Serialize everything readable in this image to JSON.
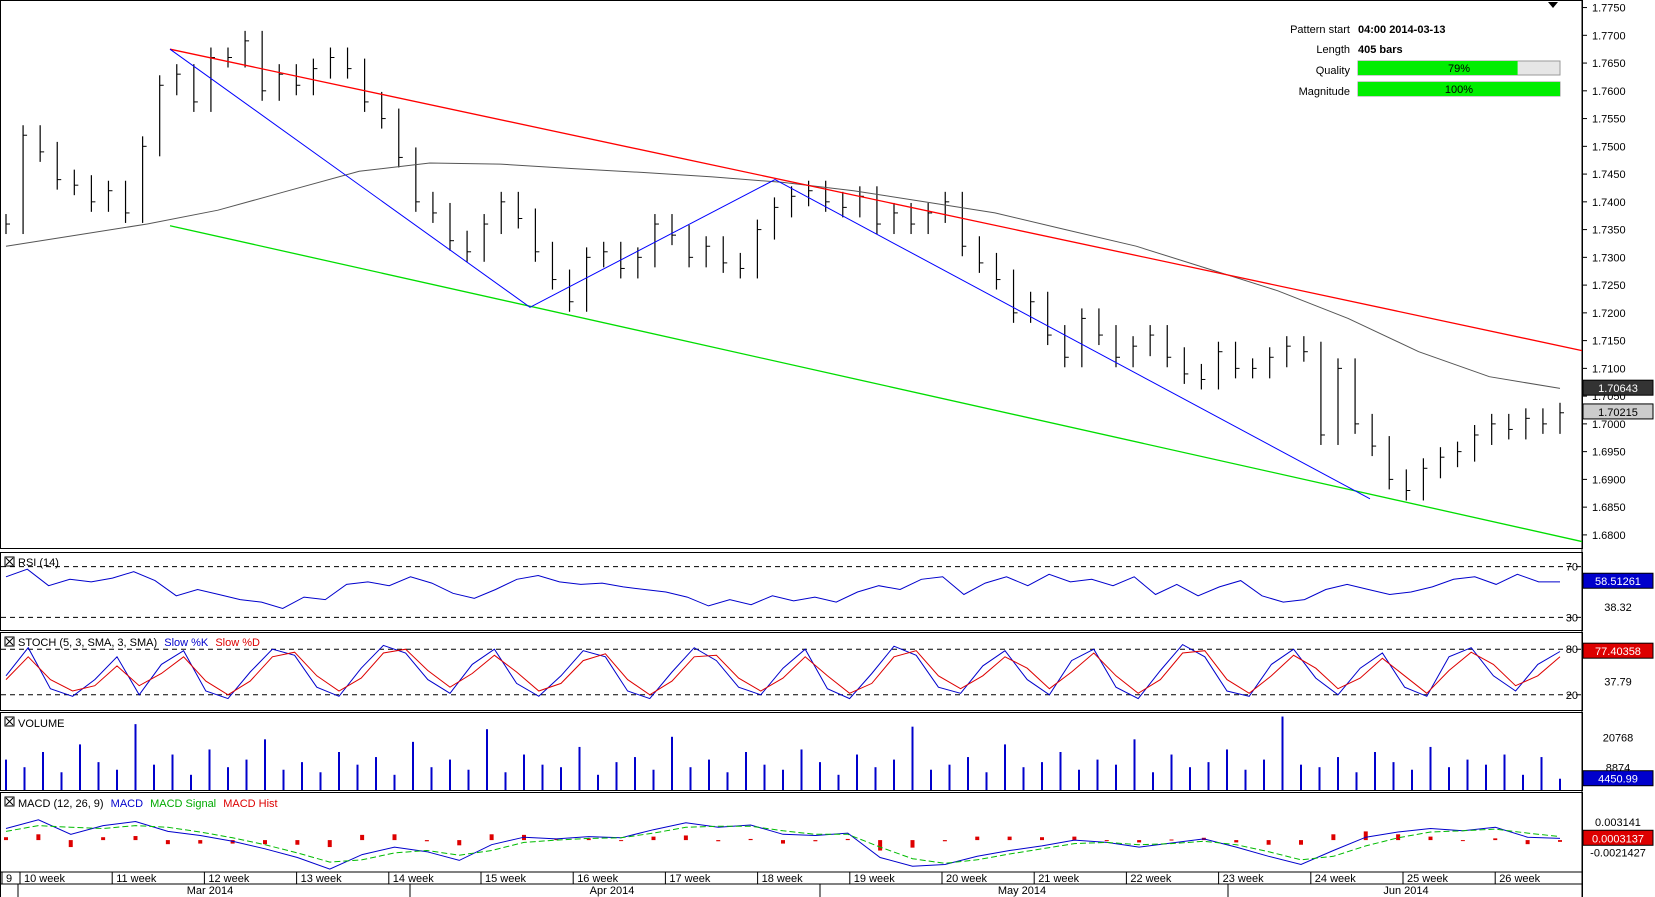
{
  "pattern_info": {
    "start_label": "Pattern start",
    "start_value": "04:00 2014-03-13",
    "length_label": "Length",
    "length_value": "405 bars",
    "quality_label": "Quality",
    "quality_value": "79%",
    "quality_fraction": 0.79,
    "magnitude_label": "Magnitude",
    "magnitude_value": "100%",
    "magnitude_fraction": 1.0
  },
  "colors": {
    "resistance": "#ff0000",
    "support": "#00dd00",
    "pattern": "#0000ff",
    "price": "#000000",
    "ma": "#555555",
    "indicator": "#0000cc",
    "signal": "#dd0000",
    "bar_fill": "#00ee00"
  },
  "chart_data": [
    {
      "type": "line",
      "panel": "price",
      "y_ticks": [
        "1.7750",
        "1.7700",
        "1.7650",
        "1.7600",
        "1.7550",
        "1.7500",
        "1.7450",
        "1.7400",
        "1.7350",
        "1.7300",
        "1.7250",
        "1.7200",
        "1.7150",
        "1.7100",
        "1.7050",
        "1.7000",
        "1.6950",
        "1.6900",
        "1.6850",
        "1.6800"
      ],
      "ylim": [
        1.678,
        1.776
      ],
      "ma_label": "1.70643",
      "last_label": "1.70215",
      "series": [
        {
          "values": [
            1.736,
            1.752,
            1.749,
            1.744,
            1.743,
            1.74,
            1.742,
            1.738,
            1.75,
            1.761,
            1.763,
            1.758,
            1.766,
            1.766,
            1.769,
            1.76,
            1.763,
            1.761,
            1.764,
            1.766,
            1.764,
            1.758,
            1.755,
            1.748,
            1.74,
            1.738,
            1.733,
            1.731,
            1.736,
            1.74,
            1.737,
            1.731,
            1.726,
            1.722,
            1.73,
            1.731,
            1.728,
            1.73,
            1.736,
            1.734,
            1.73,
            1.732,
            1.729,
            1.728,
            1.735,
            1.739,
            1.741,
            1.742,
            1.74,
            1.739,
            1.741,
            1.736,
            1.738,
            1.736,
            1.738,
            1.74,
            1.732,
            1.729,
            1.726,
            1.72,
            1.722,
            1.716,
            1.712,
            1.719,
            1.716,
            1.712,
            1.714,
            1.716,
            1.712,
            1.709,
            1.708,
            1.713,
            1.71,
            1.71,
            1.712,
            1.714,
            1.713,
            1.698,
            1.71,
            1.7,
            1.696,
            1.69,
            1.688,
            1.692,
            1.694,
            1.695,
            1.698,
            1.7,
            1.699,
            1.701,
            1.7,
            1.702
          ]
        },
        {
          "values": [
            1.732,
            1.734,
            1.736,
            1.7385,
            1.742,
            1.7455,
            1.747,
            1.7468,
            1.746,
            1.7453,
            1.7445,
            1.7435,
            1.742,
            1.74,
            1.738,
            1.735,
            1.732,
            1.728,
            1.724,
            1.719,
            1.713,
            1.7085,
            1.7064
          ]
        }
      ],
      "pattern_points": [
        [
          1.7675,
          1.721,
          1.744,
          1.6865
        ]
      ],
      "resistance_line": [
        1.7675,
        1.7132
      ],
      "support_line": [
        1.7357,
        1.6788
      ]
    },
    {
      "type": "line",
      "panel": "rsi",
      "title": "RSI (14)",
      "levels": [
        "70",
        "30"
      ],
      "mid_label": "38.32",
      "last_label": "58.51261",
      "ylim": [
        20,
        80
      ],
      "series": [
        {
          "values": [
            62,
            68,
            55,
            60,
            58,
            61,
            66,
            59,
            47,
            52,
            48,
            44,
            42,
            37,
            46,
            44,
            56,
            58,
            55,
            62,
            57,
            49,
            45,
            52,
            60,
            63,
            58,
            56,
            57,
            54,
            52,
            50,
            46,
            39,
            44,
            40,
            47,
            43,
            46,
            42,
            50,
            55,
            52,
            60,
            62,
            48,
            57,
            62,
            55,
            64,
            58,
            60,
            55,
            62,
            48,
            56,
            47,
            54,
            59,
            47,
            42,
            44,
            52,
            56,
            52,
            48,
            50,
            54,
            60,
            62,
            56,
            64,
            58,
            58
          ]
        }
      ]
    },
    {
      "type": "line",
      "panel": "stoch",
      "title": "STOCH (5, 3, SMA, 3, SMA)",
      "legend": [
        "Slow %K",
        "Slow %D"
      ],
      "levels": [
        "80",
        "20"
      ],
      "mid_label": "37.79",
      "last_label": "77.40358",
      "ylim": [
        0,
        100
      ],
      "series": [
        {
          "name": "Slow %K",
          "values": [
            45,
            82,
            28,
            18,
            40,
            70,
            20,
            60,
            78,
            25,
            15,
            50,
            80,
            72,
            30,
            18,
            55,
            85,
            75,
            40,
            22,
            60,
            80,
            35,
            18,
            45,
            78,
            70,
            25,
            15,
            50,
            82,
            65,
            30,
            20,
            55,
            80,
            28,
            15,
            48,
            84,
            72,
            30,
            22,
            58,
            78,
            40,
            20,
            65,
            80,
            30,
            15,
            52,
            86,
            70,
            25,
            18,
            60,
            80,
            42,
            20,
            55,
            75,
            30,
            18,
            70,
            82,
            45,
            25,
            60,
            77
          ]
        },
        {
          "name": "Slow %D",
          "values": [
            40,
            70,
            40,
            25,
            32,
            58,
            32,
            48,
            70,
            38,
            20,
            38,
            70,
            76,
            45,
            25,
            42,
            75,
            80,
            52,
            30,
            48,
            72,
            50,
            25,
            35,
            65,
            74,
            40,
            20,
            38,
            70,
            72,
            42,
            25,
            42,
            70,
            45,
            22,
            35,
            70,
            78,
            45,
            28,
            45,
            70,
            55,
            28,
            50,
            75,
            45,
            22,
            40,
            75,
            78,
            40,
            22,
            45,
            72,
            55,
            28,
            42,
            68,
            45,
            22,
            52,
            76,
            60,
            32,
            45,
            70
          ]
        }
      ]
    },
    {
      "type": "bar",
      "panel": "volume",
      "title": "VOLUME",
      "tick_labels": [
        "20768",
        "8874"
      ],
      "last_label": "4450.99",
      "ylim": [
        0,
        30000
      ],
      "series": [
        {
          "values": [
            12000,
            9000,
            15000,
            7000,
            18000,
            11000,
            8000,
            26000,
            10000,
            14000,
            6000,
            16000,
            9000,
            12000,
            20000,
            8000,
            11000,
            7000,
            15000,
            10000,
            13000,
            6000,
            19000,
            9000,
            12000,
            8000,
            24000,
            7000,
            14000,
            10000,
            9000,
            17000,
            6000,
            11000,
            13000,
            8000,
            21000,
            9000,
            12000,
            7000,
            15000,
            10000,
            8000,
            16000,
            11000,
            6000,
            14000,
            9000,
            12000,
            25000,
            8000,
            10000,
            13000,
            7000,
            18000,
            9000,
            11000,
            15000,
            8000,
            12000,
            10000,
            20000,
            7000,
            14000,
            9000,
            11000,
            16000,
            8000,
            12000,
            29000,
            10000,
            9000,
            13000,
            7000,
            15000,
            11000,
            8000,
            17000,
            9000,
            12000,
            10000,
            14000,
            6000,
            13000,
            4450
          ]
        }
      ]
    },
    {
      "type": "line",
      "panel": "macd",
      "title": "MACD (12, 26, 9)",
      "legend": [
        "MACD",
        "MACD Signal",
        "MACD Hist"
      ],
      "tick_labels": [
        "0.003141",
        "-0.0021427"
      ],
      "last_label": "0.0003137",
      "ylim": [
        -0.0055,
        0.0045
      ],
      "series": [
        {
          "name": "MACD",
          "values": [
            0.002,
            0.0035,
            0.001,
            0.0025,
            0.0032,
            0.0015,
            0.0008,
            -0.0002,
            -0.0015,
            -0.003,
            -0.005,
            -0.0025,
            -0.0012,
            -0.002,
            -0.0035,
            -0.0008,
            0.0005,
            0.0002,
            0.0006,
            0.0004,
            0.0018,
            0.003,
            0.0022,
            0.0026,
            0.001,
            0.0008,
            0.0012,
            -0.003,
            -0.0045,
            -0.0042,
            -0.0028,
            -0.0018,
            -0.001,
            0.0,
            -0.0004,
            -0.0012,
            -0.0005,
            0.0002,
            -0.0012,
            -0.0028,
            -0.0042,
            -0.0018,
            0.0005,
            0.0014,
            0.002,
            0.0016,
            0.0022,
            0.0005,
            0.0003
          ]
        },
        {
          "name": "MACD Signal",
          "values": [
            0.0015,
            0.0025,
            0.0022,
            0.002,
            0.0025,
            0.0022,
            0.0014,
            0.0004,
            -0.0008,
            -0.0022,
            -0.0038,
            -0.0034,
            -0.0022,
            -0.0018,
            -0.0026,
            -0.0018,
            -0.0004,
            0.0,
            0.0003,
            0.0004,
            0.0012,
            0.0022,
            0.0024,
            0.0024,
            0.0016,
            0.001,
            0.001,
            -0.0012,
            -0.0032,
            -0.004,
            -0.0034,
            -0.0024,
            -0.0015,
            -0.0006,
            -0.0004,
            -0.0008,
            -0.0006,
            -0.0002,
            -0.0008,
            -0.002,
            -0.0034,
            -0.0028,
            -0.001,
            0.0004,
            0.0014,
            0.0016,
            0.0019,
            0.0012,
            0.0006
          ]
        }
      ]
    }
  ],
  "x_axis": {
    "weeks": [
      "9",
      "10 week",
      "11 week",
      "12 week",
      "13 week",
      "14 week",
      "15 week",
      "16 week",
      "17 week",
      "18 week",
      "19 week",
      "20 week",
      "21 week",
      "22 week",
      "23 week",
      "24 week",
      "25 week",
      "26 week"
    ],
    "months": [
      "Mar 2014",
      "Apr 2014",
      "May 2014",
      "Jun 2014"
    ]
  }
}
